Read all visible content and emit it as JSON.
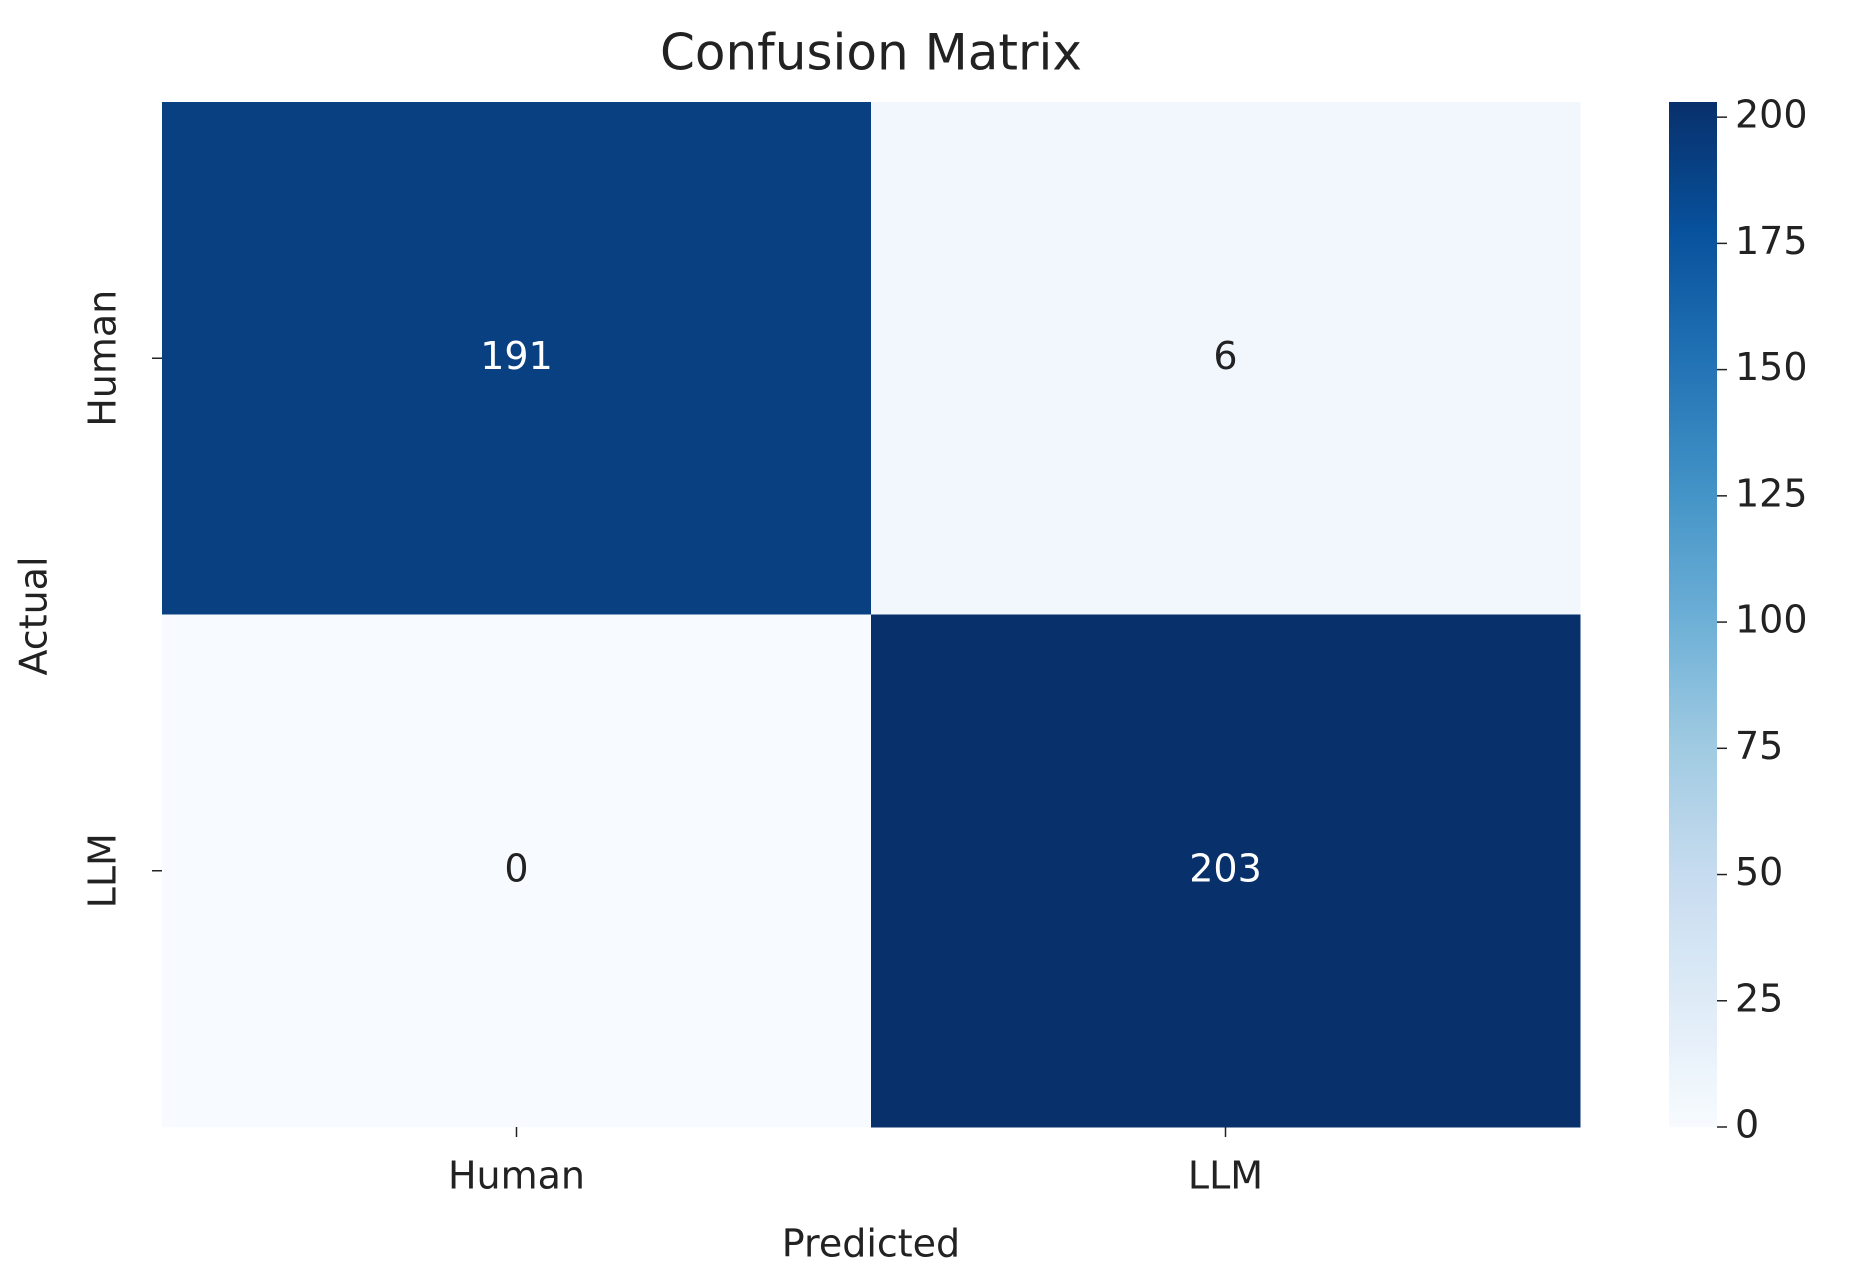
{
  "chart_data": {
    "type": "heatmap",
    "title": "Confusion Matrix",
    "x_label": "Predicted",
    "y_label": "Actual",
    "x_categories": [
      "Human",
      "LLM"
    ],
    "y_categories": [
      "Human",
      "LLM"
    ],
    "values": [
      [
        191,
        6
      ],
      [
        0,
        203
      ]
    ],
    "colormap": "Blues",
    "clim": [
      0,
      203
    ],
    "cticks": [
      0,
      25,
      50,
      75,
      100,
      125,
      150,
      175,
      200
    ]
  }
}
